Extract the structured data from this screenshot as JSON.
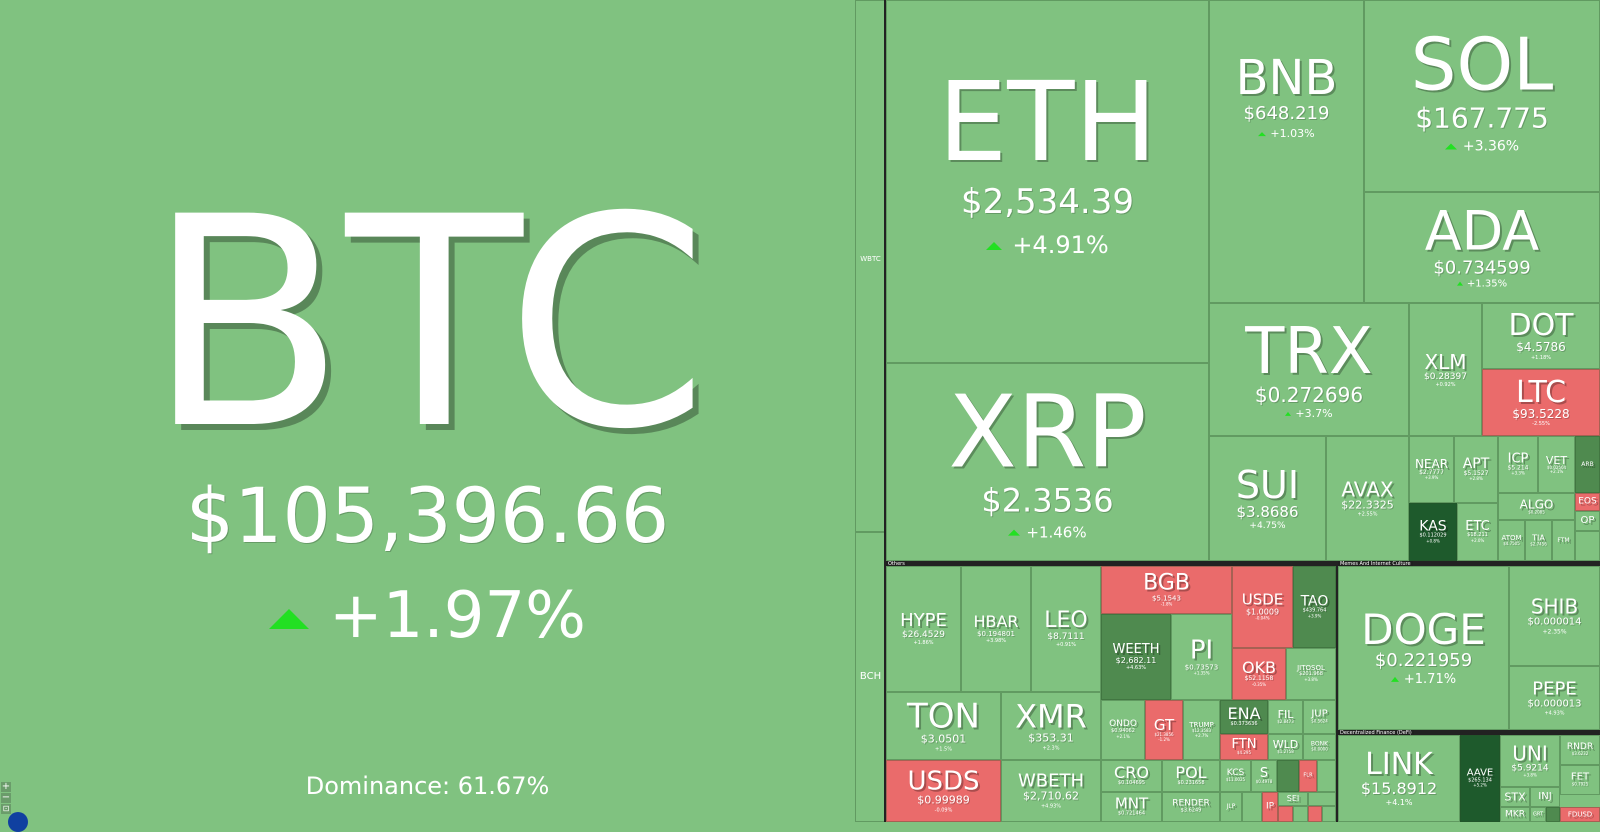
{
  "btc": {
    "symbol": "BTC",
    "price": "$105,396.66",
    "change": "+1.97%",
    "dominance": "Dominance: 61.67%"
  },
  "side": {
    "wbtc": "WBTC",
    "bch": "BCH"
  },
  "coins": {
    "eth": {
      "symbol": "ETH",
      "price": "$2,534.39",
      "change": "+4.91%"
    },
    "xrp": {
      "symbol": "XRP",
      "price": "$2.3536",
      "change": "+1.46%"
    },
    "bnb": {
      "symbol": "BNB",
      "price": "$648.219",
      "change": "+1.03%"
    },
    "sol": {
      "symbol": "SOL",
      "price": "$167.775",
      "change": "+3.36%"
    },
    "ada": {
      "symbol": "ADA",
      "price": "$0.734599",
      "change": "+1.35%"
    },
    "trx": {
      "symbol": "TRX",
      "price": "$0.272696",
      "change": "+3.7%"
    },
    "xlm": {
      "symbol": "XLM",
      "price": "$0.28397",
      "change": "+0.92%"
    },
    "dot": {
      "symbol": "DOT",
      "price": "$4.5786",
      "change": "+1.18%"
    },
    "ltc": {
      "symbol": "LTC",
      "price": "$93.5228",
      "change": "-2.55%"
    },
    "sui": {
      "symbol": "SUI",
      "price": "$3.8686",
      "change": "+4.75%"
    },
    "avax": {
      "symbol": "AVAX",
      "price": "$22.3325",
      "change": "+2.55%"
    },
    "near": {
      "symbol": "NEAR",
      "price": "$2.7777",
      "change": "+3.9%"
    },
    "apt": {
      "symbol": "APT",
      "price": "$5.1527",
      "change": "+2.8%"
    },
    "icp": {
      "symbol": "ICP",
      "price": "$5.214",
      "change": "+3.3%"
    },
    "vet": {
      "symbol": "VET",
      "price": "$0.02504",
      "change": "+2.1%"
    },
    "arb": {
      "symbol": "ARB",
      "price": "",
      "change": ""
    },
    "kas": {
      "symbol": "KAS",
      "price": "$0.112029",
      "change": "+0.8%"
    },
    "etc": {
      "symbol": "ETC",
      "price": "$18.211",
      "change": "+2.0%"
    },
    "algo": {
      "symbol": "ALGO",
      "price": "$0.2085",
      "change": "+2.4%"
    },
    "eos": {
      "symbol": "EOS",
      "price": "",
      "change": ""
    },
    "op": {
      "symbol": "OP",
      "price": "",
      "change": ""
    },
    "atom": {
      "symbol": "ATOM",
      "price": "$4.7505",
      "change": "+1.9%"
    },
    "tia": {
      "symbol": "TIA",
      "price": "$2.7456",
      "change": "+2.4%"
    },
    "ftm": {
      "symbol": "FTM",
      "price": "",
      "change": ""
    },
    "hype": {
      "symbol": "HYPE",
      "price": "$26.4529",
      "change": "+1.86%"
    },
    "hbar": {
      "symbol": "HBAR",
      "price": "$0.194801",
      "change": "+3.98%"
    },
    "leo": {
      "symbol": "LEO",
      "price": "$8.7111",
      "change": "+0.91%"
    },
    "bgb": {
      "symbol": "BGB",
      "price": "$5.1543",
      "change": "-1.8%"
    },
    "usde": {
      "symbol": "USDE",
      "price": "$1.0009",
      "change": "-0.04%"
    },
    "tao": {
      "symbol": "TAO",
      "price": "$439.764",
      "change": "+3.9%"
    },
    "weeth": {
      "symbol": "WEETH",
      "price": "$2,682.11",
      "change": "+4.63%"
    },
    "pi": {
      "symbol": "PI",
      "price": "$0.73573",
      "change": "+1.35%"
    },
    "okb": {
      "symbol": "OKB",
      "price": "$52.1158",
      "change": "-0.35%"
    },
    "jitosol": {
      "symbol": "JITOSOL",
      "price": "$201.968",
      "change": "+3.8%"
    },
    "ton": {
      "symbol": "TON",
      "price": "$3.0501",
      "change": "+1.5%"
    },
    "xmr": {
      "symbol": "XMR",
      "price": "$353.31",
      "change": "+2.3%"
    },
    "ondo": {
      "symbol": "ONDO",
      "price": "$0.94062",
      "change": "+2.1%"
    },
    "gt": {
      "symbol": "GT",
      "price": "$21.3856",
      "change": "-1.2%"
    },
    "trump": {
      "symbol": "TRUMP",
      "price": "$12.3583",
      "change": "+2.7%"
    },
    "ena": {
      "symbol": "ENA",
      "price": "$0.373636",
      "change": "+4.1%"
    },
    "fil": {
      "symbol": "FIL",
      "price": "$2.8473",
      "change": "+2.6%"
    },
    "jup": {
      "symbol": "JUP",
      "price": "$0.5624",
      "change": "+3.1%"
    },
    "ftn": {
      "symbol": "FTN",
      "price": "$4.295",
      "change": "-0.9%"
    },
    "wld": {
      "symbol": "WLD",
      "price": "$1.2758",
      "change": "+3.4%"
    },
    "bonk": {
      "symbol": "BONK",
      "price": "$0.0000",
      "change": "+2.2%"
    },
    "usds": {
      "symbol": "USDS",
      "price": "$0.99989",
      "change": "-0.09%"
    },
    "wbeth": {
      "symbol": "WBETH",
      "price": "$2,710.62",
      "change": "+4.93%"
    },
    "cro": {
      "symbol": "CRO",
      "price": "$0.104695",
      "change": "+1.8%"
    },
    "pol": {
      "symbol": "POL",
      "price": "$0.231658",
      "change": "+2.6%"
    },
    "mnt": {
      "symbol": "MNT",
      "price": "$0.721464",
      "change": "+1.4%"
    },
    "render": {
      "symbol": "RENDER",
      "price": "$3.6249",
      "change": "+3.2%"
    },
    "kcs": {
      "symbol": "KCS",
      "price": "$11.0025",
      "change": "+0.7%"
    },
    "s": {
      "symbol": "S",
      "price": "$0.4978",
      "change": "+3.0%"
    },
    "sei": {
      "symbol": "SEI",
      "price": "",
      "change": ""
    },
    "ip": {
      "symbol": "IP",
      "price": "",
      "change": ""
    },
    "jlp": {
      "symbol": "JLP",
      "price": "",
      "change": ""
    },
    "flr": {
      "symbol": "FLR",
      "price": "",
      "change": ""
    },
    "doge": {
      "symbol": "DOGE",
      "price": "$0.221959",
      "change": "+1.71%"
    },
    "shib": {
      "symbol": "SHIB",
      "price": "$0.000014",
      "change": "+2.35%"
    },
    "pepe": {
      "symbol": "PEPE",
      "price": "$0.000013",
      "change": "+4.93%"
    },
    "link": {
      "symbol": "LINK",
      "price": "$15.8912",
      "change": "+4.1%"
    },
    "aave": {
      "symbol": "AAVE",
      "price": "$265.134",
      "change": "+5.2%"
    },
    "uni": {
      "symbol": "UNI",
      "price": "$5.9214",
      "change": "+3.8%"
    },
    "rndr": {
      "symbol": "RNDR",
      "price": "$3.6232",
      "change": "+3.1%"
    },
    "stx": {
      "symbol": "STX",
      "price": "",
      "change": ""
    },
    "inj": {
      "symbol": "INJ",
      "price": "",
      "change": ""
    },
    "fet": {
      "symbol": "FET",
      "price": "$0.7925",
      "change": "+4.3%"
    },
    "mkr": {
      "symbol": "MKR",
      "price": "",
      "change": ""
    },
    "grt": {
      "symbol": "GRT",
      "price": "",
      "change": ""
    },
    "fdusd": {
      "symbol": "FDUSD",
      "price": "",
      "change": ""
    }
  },
  "sections": {
    "others": "Others",
    "memes": "Memes And Internet Culture",
    "defi": "Decentralized Finance (DeFi)"
  },
  "controls": {
    "zoom_in": "+",
    "zoom_out": "−",
    "fit": "⊡"
  },
  "colors": {
    "up": "#80c280",
    "down": "#ea6b6b",
    "dark": "#4f8a4f",
    "darker": "#1e5a2c",
    "arrow_up": "#22e022"
  }
}
